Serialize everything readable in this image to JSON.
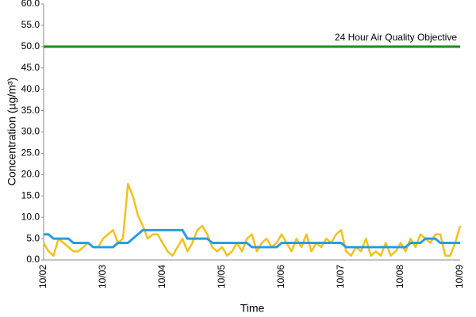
{
  "chart_data": {
    "type": "line",
    "y_label": "Concentration (µg/m³)",
    "x_label": "Time",
    "categories": [
      "10/02",
      null,
      null,
      null,
      null,
      null,
      null,
      null,
      null,
      null,
      null,
      null,
      "10/03",
      null,
      null,
      null,
      null,
      null,
      null,
      null,
      null,
      null,
      null,
      null,
      "10/04",
      null,
      null,
      null,
      null,
      null,
      null,
      null,
      null,
      null,
      null,
      null,
      "10/05",
      null,
      null,
      null,
      null,
      null,
      null,
      null,
      null,
      null,
      null,
      null,
      "10/06",
      null,
      null,
      null,
      null,
      null,
      null,
      null,
      null,
      null,
      null,
      null,
      "10/07",
      null,
      null,
      null,
      null,
      null,
      null,
      null,
      null,
      null,
      null,
      null,
      "10/08",
      null,
      null,
      null,
      null,
      null,
      null,
      null,
      null,
      null,
      null,
      null,
      "10/09"
    ],
    "series": [
      {
        "color": "#f2c21b",
        "values": [
          4,
          2,
          1,
          5,
          4,
          3,
          2,
          2,
          3,
          4,
          3,
          3,
          5,
          6,
          7,
          4,
          5,
          17.8,
          15,
          10.5,
          8,
          5,
          6,
          6,
          4,
          2,
          1,
          3,
          5,
          2,
          4,
          7,
          8,
          6,
          3,
          2,
          3,
          1,
          2,
          4,
          2,
          5,
          6,
          2,
          4,
          5,
          3,
          4,
          6,
          4,
          2,
          5,
          3,
          6,
          2,
          4,
          3,
          5,
          4,
          6,
          7,
          2,
          1,
          3,
          2,
          5,
          1,
          2,
          1,
          4,
          1,
          2,
          4,
          2,
          5,
          3,
          6,
          5,
          4,
          6,
          6,
          1,
          1,
          4,
          8
        ]
      },
      {
        "color": "#2b9be0",
        "values": [
          6,
          6,
          5,
          5,
          5,
          5,
          4,
          4,
          4,
          4,
          3,
          3,
          3,
          3,
          3,
          4,
          4,
          4,
          5,
          6,
          7,
          7,
          7,
          7,
          7,
          7,
          7,
          7,
          7,
          5,
          5,
          5,
          5,
          5,
          4,
          4,
          4,
          4,
          4,
          4,
          4,
          4,
          3,
          3,
          3,
          3,
          3,
          3,
          4,
          4,
          4,
          4,
          4,
          4,
          4,
          4,
          4,
          4,
          4,
          4,
          4,
          3,
          3,
          3,
          3,
          3,
          3,
          3,
          3,
          3,
          3,
          3,
          3,
          3,
          4,
          4,
          4,
          5,
          5,
          5,
          4,
          4,
          4,
          4,
          4
        ]
      }
    ],
    "annotations": [
      {
        "text": "24 Hour Air Quality Objective",
        "y": 50,
        "color": "#1e8c1e"
      }
    ],
    "ylim": [
      0,
      60
    ],
    "yticks": [
      {
        "value": 0,
        "label": "0.0"
      },
      {
        "value": 5,
        "label": "5.0"
      },
      {
        "value": 10,
        "label": "10.0"
      },
      {
        "value": 15,
        "label": "15.0"
      },
      {
        "value": 20,
        "label": "20.0"
      },
      {
        "value": 25,
        "label": "25.0"
      },
      {
        "value": 30,
        "label": "30.0"
      },
      {
        "value": 35,
        "label": "35.0"
      },
      {
        "value": 40,
        "label": "40.0"
      },
      {
        "value": 45,
        "label": "45.0"
      },
      {
        "value": 50,
        "label": "50.0"
      },
      {
        "value": 55,
        "label": "55.0"
      },
      {
        "value": 60,
        "label": "60.0"
      }
    ],
    "grid": false
  }
}
